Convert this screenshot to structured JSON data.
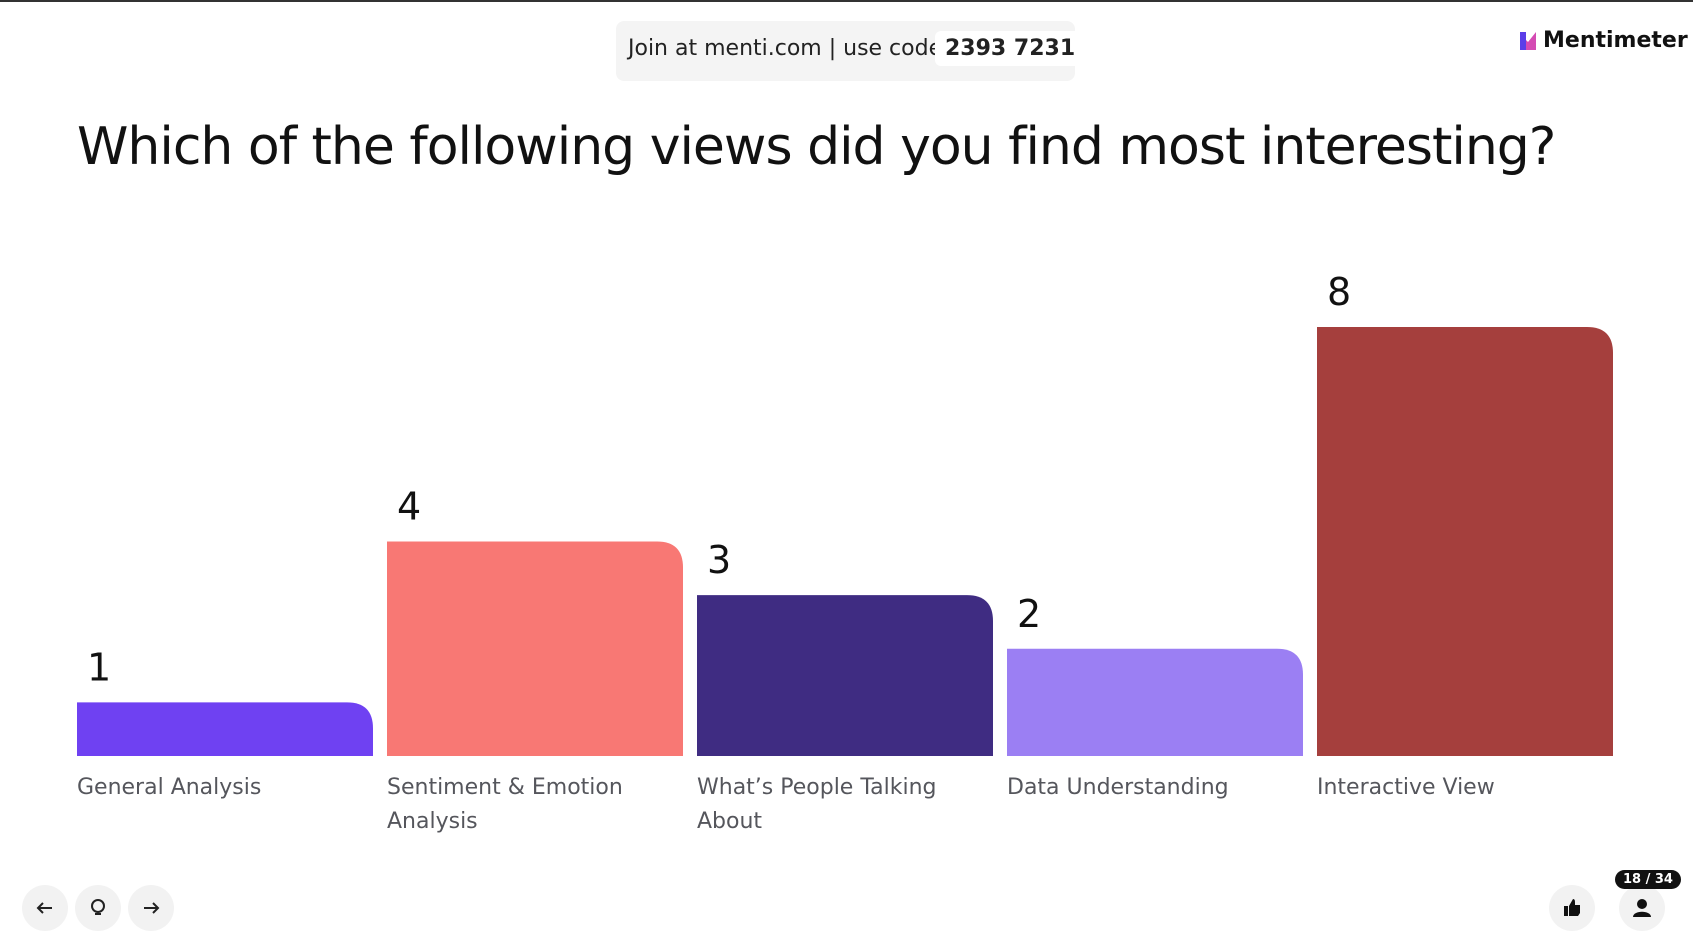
{
  "header": {
    "join_text": "Join at menti.com | use code",
    "code": "2393 7231",
    "brand": "Mentimeter"
  },
  "chart_data": {
    "type": "bar",
    "title": "Which of the following views did you find most interesting?",
    "categories": [
      "General Analysis",
      "Sentiment & Emotion Analysis",
      "What’s People Talking About",
      "Data Understanding",
      "Interactive View"
    ],
    "values": [
      1,
      4,
      3,
      2,
      8
    ],
    "colors": [
      "#6f41f2",
      "#f87874",
      "#3f2c82",
      "#9b7ff3",
      "#a53f3d"
    ]
  },
  "footer": {
    "slide_counter": "18 / 34"
  }
}
